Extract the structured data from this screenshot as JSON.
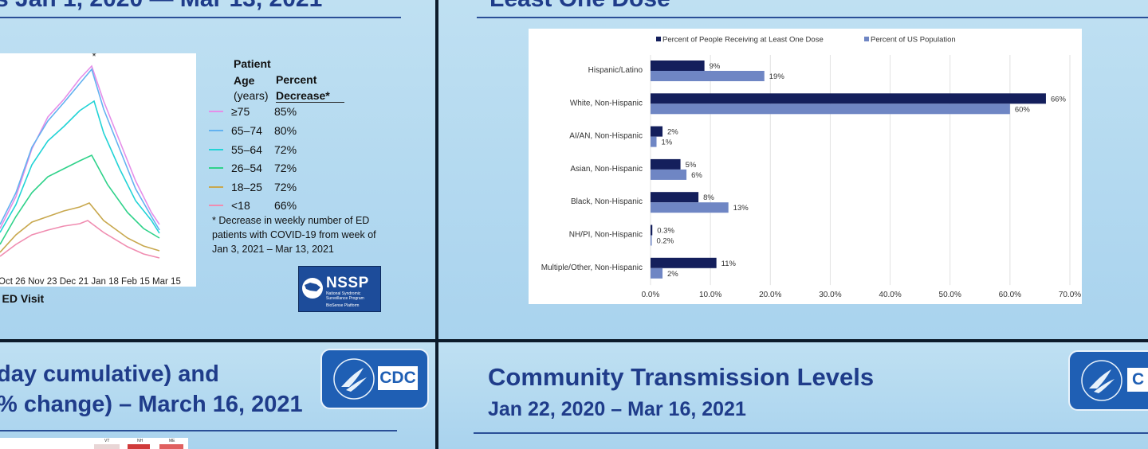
{
  "panel_top_left": {
    "title_fragment": "s Jan 1, 2020 — Mar 13, 2021",
    "asterisk": "*",
    "x_ticks": [
      "Oct 26",
      "Nov 23",
      "Dec 21",
      "Jan 18",
      "Feb 15",
      "Mar 15"
    ],
    "x_ticks_prefix": "Oct 26 Nov 23 Dec 21 Jan 18 Feb 15 Mar 15",
    "xlabel_fragment": "f ED Visit",
    "legend": {
      "header_patient": "Patient",
      "header_age": "Age",
      "header_years": "(years)",
      "header_percent": "Percent",
      "header_decrease": "Decrease*",
      "rows": [
        {
          "age": "≥75",
          "value": "85%",
          "color": "#e58ee8"
        },
        {
          "age": "65–74",
          "value": "80%",
          "color": "#63b2f0"
        },
        {
          "age": "55–64",
          "value": "72%",
          "color": "#22d3d6"
        },
        {
          "age": "26–54",
          "value": "72%",
          "color": "#2fd28a"
        },
        {
          "age": "18–25",
          "value": "72%",
          "color": "#c8a84e"
        },
        {
          "age": "<18",
          "value": "66%",
          "color": "#f08cb0"
        }
      ]
    },
    "footnote": "* Decrease in weekly number of ED patients with COVID-19 from week of Jan 3, 2021 – Mar 13, 2021",
    "nssp_logo_text": "NSSP",
    "nssp_logo_sub": "National Syndromic Surveillance Program",
    "nssp_logo_sub2": "BioSense Platform"
  },
  "panel_top_right": {
    "title_fragment": "Least One Dose"
  },
  "panel_bottom_left": {
    "title_line1": "day cumulative) and",
    "title_line2": "% change) – March 16, 2021",
    "cdc_logo": "CDC",
    "map_labels": [
      "VT",
      "NH",
      "ME"
    ]
  },
  "panel_bottom_right": {
    "title": "Community Transmission Levels",
    "subtitle": "Jan 22, 2020 – Mar 16, 2021",
    "cdc_logo": "C"
  },
  "chart_data": {
    "type": "bar",
    "orientation": "horizontal",
    "categories": [
      "Hispanic/Latino",
      "White, Non-Hispanic",
      "AI/AN, Non-Hispanic",
      "Asian, Non-Hispanic",
      "Black, Non-Hispanic",
      "NH/PI, Non-Hispanic",
      "Multiple/Other, Non-Hispanic"
    ],
    "series": [
      {
        "name": "Percent of People Receiving at Least One Dose",
        "color": "#141f5c",
        "values": [
          9,
          66,
          2,
          5,
          8,
          0.3,
          11
        ],
        "labels": [
          "9%",
          "66%",
          "2%",
          "5%",
          "8%",
          "0.3%",
          "11%"
        ]
      },
      {
        "name": "Percent of US Population",
        "color": "#6f86c4",
        "values": [
          19,
          60,
          1,
          6,
          13,
          0.2,
          2
        ],
        "labels": [
          "19%",
          "60%",
          "1%",
          "6%",
          "13%",
          "0.2%",
          "2%"
        ]
      }
    ],
    "x_ticks": [
      "0.0%",
      "10.0%",
      "20.0%",
      "30.0%",
      "40.0%",
      "50.0%",
      "60.0%",
      "70.0%"
    ],
    "xlim": [
      0,
      70
    ],
    "grid": true,
    "legend_position": "top"
  }
}
